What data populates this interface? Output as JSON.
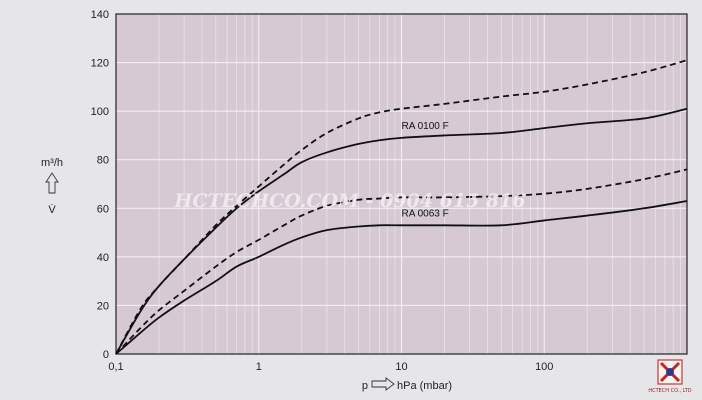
{
  "chart_data": {
    "type": "line",
    "x_scale": "log",
    "xlim": [
      0.1,
      1000
    ],
    "ylim": [
      0,
      140
    ],
    "grid": true,
    "plot_background": "#d6c9d3",
    "page_background": "#e6e6e9",
    "line_color": "#111111",
    "x_ticks": [
      {
        "value": 0.1,
        "label": "0,1"
      },
      {
        "value": 1,
        "label": "1"
      },
      {
        "value": 10,
        "label": "10"
      },
      {
        "value": 100,
        "label": "100"
      }
    ],
    "y_ticks": [
      0,
      20,
      40,
      60,
      80,
      100,
      120,
      140
    ],
    "xlabel": {
      "symbol": "p",
      "unit": "hPa (mbar)"
    },
    "ylabel": {
      "unit": "m³/h",
      "symbol": "V̇"
    },
    "series": [
      {
        "name": "RA 0100 F",
        "style": "solid",
        "x": [
          0.1,
          0.15,
          0.2,
          0.3,
          0.5,
          0.7,
          1,
          1.5,
          2,
          3,
          5,
          7,
          10,
          20,
          50,
          100,
          200,
          500,
          1000
        ],
        "y": [
          0,
          18,
          28,
          39,
          52,
          60,
          67,
          74,
          79,
          83,
          86.5,
          88,
          89,
          90,
          91,
          93,
          95,
          97,
          101
        ]
      },
      {
        "name": "",
        "style": "dashed",
        "x": [
          0.1,
          0.15,
          0.2,
          0.3,
          0.5,
          0.7,
          1,
          1.5,
          2,
          3,
          5,
          7,
          10,
          20,
          50,
          100,
          200,
          500,
          1000
        ],
        "y": [
          0,
          19,
          28,
          39,
          53,
          61,
          69,
          78,
          84,
          91,
          97,
          99.5,
          101,
          103,
          106,
          108,
          111,
          116,
          121
        ]
      },
      {
        "name": "RA 0063 F",
        "style": "solid",
        "x": [
          0.1,
          0.15,
          0.2,
          0.3,
          0.5,
          0.7,
          1,
          1.5,
          2,
          3,
          5,
          7,
          10,
          20,
          50,
          100,
          200,
          500,
          1000
        ],
        "y": [
          0,
          9,
          15,
          22,
          30,
          36,
          40,
          45,
          48,
          51,
          52.5,
          53,
          53,
          53,
          53,
          55,
          57,
          60,
          63
        ]
      },
      {
        "name": "",
        "style": "dashed",
        "x": [
          0.1,
          0.15,
          0.2,
          0.3,
          0.5,
          0.7,
          1,
          1.5,
          2,
          3,
          5,
          7,
          10,
          20,
          50,
          100,
          200,
          500,
          1000
        ],
        "y": [
          0,
          11,
          18,
          26,
          36,
          42,
          47,
          53,
          57,
          61,
          63.5,
          64,
          64.5,
          64.5,
          65,
          66,
          68,
          72,
          76
        ]
      }
    ]
  },
  "watermark": {
    "text": "HCTECHCO.COM - 0904 615 816"
  },
  "logo": {
    "caption": "HCTECH CO., LTD"
  }
}
